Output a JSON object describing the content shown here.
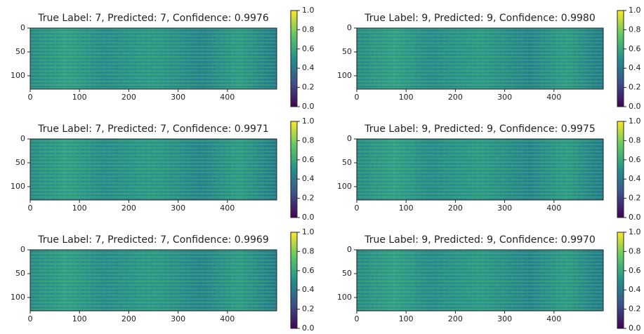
{
  "chart_data": [
    {
      "type": "heatmap",
      "title": "True Label: 7, Predicted: 7, Confidence: 0.9976",
      "colormap": "viridis",
      "xlim": [
        0,
        500
      ],
      "xticks": [
        0,
        100,
        200,
        300,
        400
      ],
      "ylim": [
        128,
        0
      ],
      "yticks": [
        0,
        50,
        100
      ],
      "clim": [
        0,
        1
      ],
      "cticks": [
        {
          "value": 0,
          "label": "0.0"
        },
        0.2,
        0.4,
        0.6,
        0.8,
        {
          "value": 1,
          "label": "1.0"
        }
      ]
    },
    {
      "type": "heatmap",
      "title": "True Label: 9, Predicted: 9, Confidence: 0.9980",
      "colormap": "viridis",
      "xlim": [
        0,
        500
      ],
      "xticks": [
        0,
        100,
        200,
        300,
        400
      ],
      "ylim": [
        128,
        0
      ],
      "yticks": [
        0,
        50,
        100
      ],
      "clim": [
        0,
        1
      ],
      "cticks": [
        {
          "value": 0,
          "label": "0.0"
        },
        0.2,
        0.4,
        0.6,
        0.8,
        {
          "value": 1,
          "label": "1.0"
        }
      ]
    },
    {
      "type": "heatmap",
      "title": "True Label: 7, Predicted: 7, Confidence: 0.9971",
      "colormap": "viridis",
      "xlim": [
        0,
        500
      ],
      "xticks": [
        0,
        100,
        200,
        300,
        400
      ],
      "ylim": [
        128,
        0
      ],
      "yticks": [
        0,
        50,
        100
      ],
      "clim": [
        0,
        1
      ],
      "cticks": [
        {
          "value": 0,
          "label": "0.0"
        },
        0.2,
        0.4,
        0.6,
        0.8,
        {
          "value": 1,
          "label": "1.0"
        }
      ]
    },
    {
      "type": "heatmap",
      "title": "True Label: 9, Predicted: 9, Confidence: 0.9975",
      "colormap": "viridis",
      "xlim": [
        0,
        500
      ],
      "xticks": [
        0,
        100,
        200,
        300,
        400
      ],
      "ylim": [
        128,
        0
      ],
      "yticks": [
        0,
        50,
        100
      ],
      "clim": [
        0,
        1
      ],
      "cticks": [
        {
          "value": 0,
          "label": "0.0"
        },
        0.2,
        0.4,
        0.6,
        0.8,
        {
          "value": 1,
          "label": "1.0"
        }
      ]
    },
    {
      "type": "heatmap",
      "title": "True Label: 7, Predicted: 7, Confidence: 0.9969",
      "colormap": "viridis",
      "xlim": [
        0,
        500
      ],
      "xticks": [
        0,
        100,
        200,
        300,
        400
      ],
      "ylim": [
        128,
        0
      ],
      "yticks": [
        0,
        50,
        100
      ],
      "clim": [
        0,
        1
      ],
      "cticks": [
        {
          "value": 0,
          "label": "0.0"
        },
        0.2,
        0.4,
        0.6,
        0.8,
        {
          "value": 1,
          "label": "1.0"
        }
      ]
    },
    {
      "type": "heatmap",
      "title": "True Label: 9, Predicted: 9, Confidence: 0.9970",
      "colormap": "viridis",
      "xlim": [
        0,
        500
      ],
      "xticks": [
        0,
        100,
        200,
        300,
        400
      ],
      "ylim": [
        128,
        0
      ],
      "yticks": [
        0,
        50,
        100
      ],
      "clim": [
        0,
        1
      ],
      "cticks": [
        {
          "value": 0,
          "label": "0.0"
        },
        0.2,
        0.4,
        0.6,
        0.8,
        {
          "value": 1,
          "label": "1.0"
        }
      ]
    }
  ]
}
